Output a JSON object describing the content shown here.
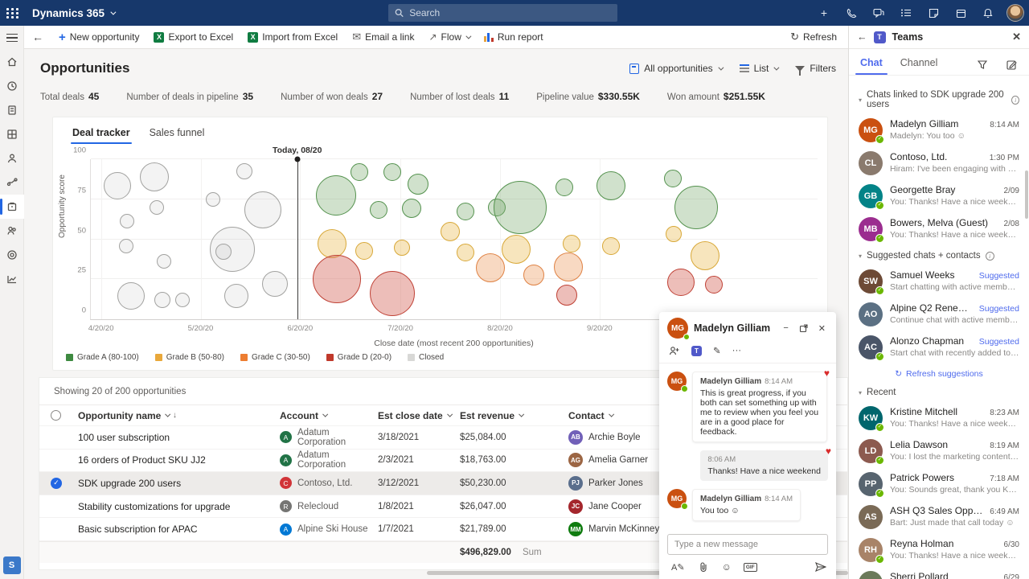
{
  "topbar": {
    "app_name": "Dynamics 365",
    "search_placeholder": "Search"
  },
  "command_bar": {
    "items": [
      {
        "label": "New opportunity"
      },
      {
        "label": "Export to Excel"
      },
      {
        "label": "Import from Excel"
      },
      {
        "label": "Email a link"
      },
      {
        "label": "Flow"
      },
      {
        "label": "Run report"
      }
    ],
    "refresh_label": "Refresh"
  },
  "page": {
    "title": "Opportunities",
    "view_selector": "All opportunities",
    "layout_selector": "List",
    "filters_label": "Filters"
  },
  "metrics": [
    {
      "label": "Total deals",
      "value": "45"
    },
    {
      "label": "Number of deals in pipeline",
      "value": "35"
    },
    {
      "label": "Number of won deals",
      "value": "27"
    },
    {
      "label": "Number of lost deals",
      "value": "11"
    },
    {
      "label": "Pipeline value",
      "value": "$330.55K"
    },
    {
      "label": "Won amount",
      "value": "$251.55K"
    }
  ],
  "chart_tabs": [
    {
      "label": "Deal tracker",
      "active": true
    },
    {
      "label": "Sales funnel",
      "active": false
    }
  ],
  "chart_data": {
    "type": "scatter",
    "title": "",
    "xlabel": "Close date (most recent 200 opportunities)",
    "ylabel": "Opportunity score",
    "ylim": [
      0,
      100
    ],
    "yticks": [
      0,
      25,
      50,
      75,
      100
    ],
    "xticks": [
      {
        "label": "4/20/20",
        "pos": 1.4
      },
      {
        "label": "5/20/20",
        "pos": 15.1
      },
      {
        "label": "6/20/20",
        "pos": 28.8
      },
      {
        "label": "7/20/20",
        "pos": 42.6
      },
      {
        "label": "8/20/20",
        "pos": 56.3
      },
      {
        "label": "9/20/20",
        "pos": 70.0
      }
    ],
    "today": {
      "label": "Today, 08/20",
      "pos": 28.4
    },
    "legend": [
      {
        "label": "Grade A (80-100)",
        "color": "#3e8a41"
      },
      {
        "label": "Grade B (50-80)",
        "color": "#e9a83b"
      },
      {
        "label": "Grade C (30-50)",
        "color": "#ed7d31"
      },
      {
        "label": "Grade D (20-0)",
        "color": "#c0392b"
      },
      {
        "label": "Closed",
        "color": "#d8d8d6"
      }
    ],
    "series": [
      {
        "name": "Closed",
        "stroke": "#a2a2a0",
        "fill": "rgba(170,170,168,0.14)",
        "points": [
          [
            3.7,
            83.5,
            17
          ],
          [
            8.7,
            89,
            18
          ],
          [
            5,
            61.5,
            9
          ],
          [
            9.1,
            70,
            9
          ],
          [
            4.9,
            45.5,
            9
          ],
          [
            10.1,
            36,
            9
          ],
          [
            5.5,
            14.5,
            17
          ],
          [
            9.9,
            12,
            10
          ],
          [
            12.6,
            12,
            9
          ],
          [
            21.1,
            92.5,
            10
          ],
          [
            16.8,
            75,
            9
          ],
          [
            23.7,
            68.5,
            23
          ],
          [
            19.5,
            43.5,
            28
          ],
          [
            18.3,
            42,
            10
          ],
          [
            20,
            14.5,
            15
          ],
          [
            25.3,
            22,
            16
          ]
        ]
      },
      {
        "name": "Grade A",
        "stroke": "#54924e",
        "fill": "rgba(120,170,110,0.35)",
        "points": [
          [
            33.7,
            77.5,
            25
          ],
          [
            37,
            92,
            11
          ],
          [
            41.5,
            92,
            11
          ],
          [
            45,
            84.5,
            13
          ],
          [
            39.6,
            68.5,
            11
          ],
          [
            44.1,
            69.5,
            12
          ],
          [
            51.6,
            67.5,
            11
          ],
          [
            55.9,
            70,
            11
          ],
          [
            59.1,
            70,
            33
          ],
          [
            65.2,
            82.5,
            11
          ],
          [
            71.6,
            83.5,
            18
          ],
          [
            80.1,
            88,
            11
          ],
          [
            83.3,
            70,
            27
          ]
        ]
      },
      {
        "name": "Grade B",
        "stroke": "#d8a838",
        "fill": "rgba(235,190,90,0.4)",
        "points": [
          [
            33.2,
            47,
            18
          ],
          [
            37.6,
            42.5,
            11
          ],
          [
            42.8,
            44.5,
            10
          ],
          [
            49.5,
            55,
            12
          ],
          [
            51.6,
            41.5,
            11
          ],
          [
            58.5,
            43.5,
            18
          ],
          [
            66.2,
            47,
            11
          ],
          [
            71.6,
            45.5,
            11
          ],
          [
            80.2,
            53.5,
            10
          ],
          [
            84.5,
            39.5,
            18
          ]
        ]
      },
      {
        "name": "Grade C",
        "stroke": "#df8244",
        "fill": "rgba(240,170,120,0.45)",
        "points": [
          [
            55,
            32,
            18
          ],
          [
            61,
            27.5,
            13
          ],
          [
            65.7,
            32.5,
            18
          ]
        ]
      },
      {
        "name": "Grade D",
        "stroke": "#bf4135",
        "fill": "rgba(215,110,100,0.45)",
        "points": [
          [
            33.8,
            25,
            30
          ],
          [
            41.5,
            16,
            28
          ],
          [
            65.5,
            15,
            13
          ],
          [
            81.2,
            23,
            17
          ],
          [
            85.7,
            21.5,
            11
          ]
        ]
      }
    ]
  },
  "grid": {
    "summary": "Showing 20 of 200 opportunities",
    "columns": [
      "Opportunity name",
      "Account",
      "Est close date",
      "Est revenue",
      "Contact"
    ],
    "rows": [
      {
        "name": "100 user subscription",
        "account": "Adatum Corporation",
        "account_initial": "A",
        "account_color": "#217346",
        "close": "3/18/2021",
        "revenue": "$25,084.00",
        "contact": "Archie Boyle",
        "contact_initials": "AB",
        "contact_color": "#7160b8",
        "selected": false
      },
      {
        "name": "16 orders of Product SKU JJ2",
        "account": "Adatum Corporation",
        "account_initial": "A",
        "account_color": "#217346",
        "close": "2/3/2021",
        "revenue": "$18,763.00",
        "contact": "Amelia Garner",
        "contact_initials": "AG",
        "contact_color": "#9c6644",
        "selected": false
      },
      {
        "name": "SDK upgrade 200 users",
        "account": "Contoso, Ltd.",
        "account_initial": "C",
        "account_color": "#d13438",
        "close": "3/12/2021",
        "revenue": "$50,230.00",
        "contact": "Parker Jones",
        "contact_initials": "PJ",
        "contact_color": "#5a6e8c",
        "selected": true
      },
      {
        "name": "Stability customizations for upgrade",
        "account": "Relecloud",
        "account_initial": "R",
        "account_color": "#757573",
        "close": "1/8/2021",
        "revenue": "$26,047.00",
        "contact": "Jane Cooper",
        "contact_initials": "JC",
        "contact_color": "#a4262c",
        "selected": false
      },
      {
        "name": "Basic subscription for APAC",
        "account": "Alpine Ski House",
        "account_initial": "A",
        "account_color": "#0078d4",
        "close": "1/7/2021",
        "revenue": "$21,789.00",
        "contact": "Marvin McKinney",
        "contact_initials": "MM",
        "contact_color": "#107c10",
        "selected": false
      }
    ],
    "footer": {
      "sum_value": "$496,829.00",
      "sum_label": "Sum"
    }
  },
  "teams": {
    "title": "Teams",
    "tabs": [
      {
        "label": "Chat",
        "active": true
      },
      {
        "label": "Channel",
        "active": false
      }
    ],
    "sections": [
      {
        "title": "Chats linked to SDK upgrade 200 users",
        "info": true,
        "items": [
          {
            "name": "Madelyn Gilliam",
            "time": "8:14 AM",
            "preview": "Madelyn: You too ☺",
            "initials": "MG",
            "color": "#CA5010",
            "presence": true
          },
          {
            "name": "Contoso, Ltd.",
            "time": "1:30 PM",
            "preview": "Hiram: I've been engaging with our contac...",
            "initials": "CL",
            "color": "#8a7a6d",
            "presence": false
          },
          {
            "name": "Georgette Bray",
            "time": "2/09",
            "preview": "You: Thanks! Have a nice weekend",
            "initials": "GB",
            "color": "#038387",
            "presence": true
          },
          {
            "name": "Bowers, Melva (Guest)",
            "time": "2/08",
            "preview": "You: Thanks! Have a nice weekend",
            "initials": "MB",
            "color": "#9b2d8f",
            "presence": true
          }
        ]
      },
      {
        "title": "Suggested chats + contacts",
        "info": true,
        "link": "Refresh suggestions",
        "items": [
          {
            "name": "Samuel Weeks",
            "badge": "Suggested",
            "preview": "Start chatting with active member of Sales T ...",
            "initials": "SW",
            "color": "#6d4a36",
            "presence": true
          },
          {
            "name": "Alpine Q2 Renewal Opportunity",
            "badge": "Suggested",
            "preview": "Continue chat with active members",
            "initials": "AO",
            "color": "#5b7083",
            "presence": false
          },
          {
            "name": "Alonzo Chapman",
            "badge": "Suggested",
            "preview": "Start chat with recently added to the Timeline",
            "initials": "AC",
            "color": "#4a5568",
            "presence": true
          }
        ]
      },
      {
        "title": "Recent",
        "info": false,
        "items": [
          {
            "name": "Kristine Mitchell",
            "time": "8:23 AM",
            "preview": "You: Thanks! Have a nice weekend",
            "initials": "KW",
            "color": "#00666d",
            "presence": true
          },
          {
            "name": "Lelia Dawson",
            "time": "8:19 AM",
            "preview": "You: I lost the marketing content, could you...",
            "initials": "LD",
            "color": "#8c5a4f",
            "presence": true
          },
          {
            "name": "Patrick Powers",
            "time": "7:18 AM",
            "preview": "You: Sounds great, thank you Kenny!",
            "initials": "PP",
            "color": "#57646f",
            "presence": true
          },
          {
            "name": "ASH Q3 Sales Opportunity",
            "time": "6:49 AM",
            "preview": "Bart: Just made that call today ☺",
            "initials": "AS",
            "color": "#7a6a56",
            "presence": false
          },
          {
            "name": "Reyna Holman",
            "time": "6/30",
            "preview": "You: Thanks! Have a nice weekend",
            "initials": "RH",
            "color": "#a88368",
            "presence": true
          },
          {
            "name": "Sherri Pollard",
            "time": "6/29",
            "preview": "You: Where are we with the Fabrikam deal f...",
            "initials": "SP",
            "color": "#6b7a5a",
            "presence": true
          }
        ]
      }
    ]
  },
  "chat_popup": {
    "name": "Madelyn Gilliam",
    "avatar": {
      "initials": "MG",
      "color": "#CA5010"
    },
    "messages": [
      {
        "dir": "in",
        "author": "Madelyn Gilliam",
        "time": "8:14 AM",
        "text": "This is great progress, if you both can set something up with me to review when you feel you are in a good place for feedback.",
        "reaction": "♥",
        "avatar": true
      },
      {
        "dir": "out",
        "time": "8:06 AM",
        "text": "Thanks! Have a nice weekend",
        "reaction": "♥"
      },
      {
        "dir": "in",
        "author": "Madelyn Gilliam",
        "time": "8:14 AM",
        "text": "You too ☺",
        "avatar": true
      }
    ],
    "input_placeholder": "Type a new message"
  },
  "sidebar": {
    "badge": "S"
  }
}
